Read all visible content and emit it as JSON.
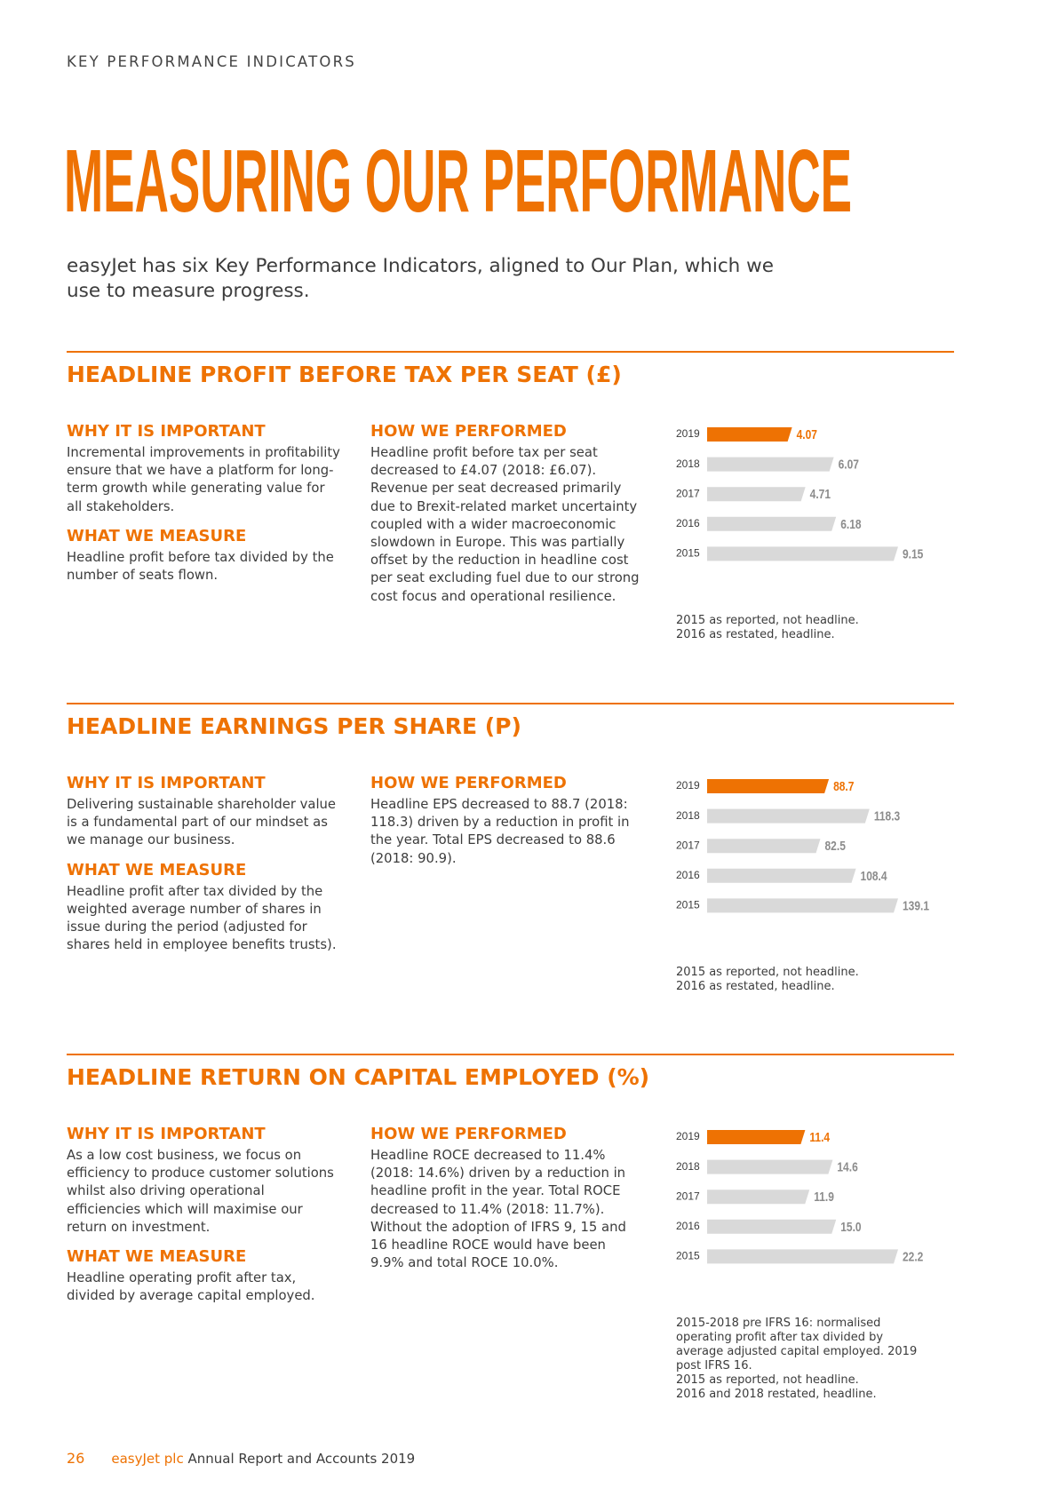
{
  "header": {
    "section": "KEY PERFORMANCE INDICATORS",
    "title": "MEASURING OUR PERFORMANCE",
    "intro": "easyJet has six Key Performance Indicators, aligned to Our Plan, which we use to measure progress."
  },
  "kpis": [
    {
      "title": "HEADLINE PROFIT BEFORE TAX PER SEAT (£)",
      "why_heading": "WHY IT IS IMPORTANT",
      "why_text": "Incremental improvements in profitability ensure that we have a platform for long-term growth while generating value for all stakeholders.",
      "measure_heading": "WHAT WE MEASURE",
      "measure_text": "Headline profit before tax divided by the number of seats flown.",
      "performed_heading": "HOW WE PERFORMED",
      "performed_text": "Headline profit before tax per seat decreased to £4.07 (2018: £6.07). Revenue per seat decreased primarily due to Brexit-related market uncertainty coupled with a wider macroeconomic slowdown in Europe. This was partially offset by the reduction in headline cost per seat excluding fuel due to our strong cost focus and operational resilience.",
      "chart": {
        "type": "bar",
        "categories": [
          "2019",
          "2018",
          "2017",
          "2016",
          "2015"
        ],
        "values": [
          4.07,
          6.07,
          4.71,
          6.18,
          9.15
        ],
        "colors": [
          "#ee7203",
          "#d9d9d9",
          "#d9d9d9",
          "#d9d9d9",
          "#d9d9d9"
        ],
        "label_colors": [
          "#ee7203",
          "#8c8c8c",
          "#8c8c8c",
          "#8c8c8c",
          "#8c8c8c"
        ]
      },
      "notes": [
        "2015 as reported, not headline.",
        "2016 as restated, headline."
      ]
    },
    {
      "title": "HEADLINE EARNINGS PER SHARE (P)",
      "why_heading": "WHY IT IS IMPORTANT",
      "why_text": "Delivering sustainable shareholder value is a fundamental part of our mindset as we manage our business.",
      "measure_heading": "WHAT WE MEASURE",
      "measure_text": "Headline profit after tax divided by the weighted average number of shares in issue during the period (adjusted for shares held in employee benefits trusts).",
      "performed_heading": "HOW WE PERFORMED",
      "performed_text": "Headline EPS decreased to 88.7 (2018: 118.3) driven by a reduction in profit in the year. Total EPS decreased to 88.6 (2018: 90.9).",
      "chart": {
        "type": "bar",
        "categories": [
          "2019",
          "2018",
          "2017",
          "2016",
          "2015"
        ],
        "values": [
          88.7,
          118.3,
          82.5,
          108.4,
          139.1
        ],
        "colors": [
          "#ee7203",
          "#d9d9d9",
          "#d9d9d9",
          "#d9d9d9",
          "#d9d9d9"
        ],
        "label_colors": [
          "#ee7203",
          "#8c8c8c",
          "#8c8c8c",
          "#8c8c8c",
          "#8c8c8c"
        ]
      },
      "notes": [
        "2015 as reported, not headline.",
        "2016 as restated, headline."
      ]
    },
    {
      "title": "HEADLINE RETURN ON CAPITAL EMPLOYED (%)",
      "why_heading": "WHY IT IS IMPORTANT",
      "why_text": "As a low cost business, we focus on efficiency to produce customer solutions whilst also driving operational efficiencies which will maximise our return on investment.",
      "measure_heading": "WHAT WE MEASURE",
      "measure_text": "Headline operating profit after tax, divided by average capital employed.",
      "performed_heading": "HOW WE PERFORMED",
      "performed_text": "Headline ROCE decreased to 11.4% (2018: 14.6%) driven by a reduction in headline profit in the year. Total ROCE decreased to 11.4% (2018: 11.7%). Without the adoption of IFRS 9, 15 and 16 headline ROCE would have been 9.9% and total ROCE 10.0%.",
      "chart": {
        "type": "bar",
        "categories": [
          "2019",
          "2018",
          "2017",
          "2016",
          "2015"
        ],
        "values": [
          11.4,
          14.6,
          11.9,
          15.0,
          22.2
        ],
        "value_labels": [
          "11.4",
          "14.6",
          "11.9",
          "15.0",
          "22.2"
        ],
        "colors": [
          "#ee7203",
          "#d9d9d9",
          "#d9d9d9",
          "#d9d9d9",
          "#d9d9d9"
        ],
        "label_colors": [
          "#ee7203",
          "#8c8c8c",
          "#8c8c8c",
          "#8c8c8c",
          "#8c8c8c"
        ]
      },
      "notes": [
        "2015-2018 pre IFRS 16: normalised operating profit after tax divided by average adjusted capital employed. 2019 post IFRS 16.",
        "2015 as reported, not headline.",
        "2016 and 2018 restated, headline."
      ]
    }
  ],
  "footer": {
    "page": 26,
    "brand": "easyJet plc",
    "report": "Annual Report and Accounts 2019"
  }
}
